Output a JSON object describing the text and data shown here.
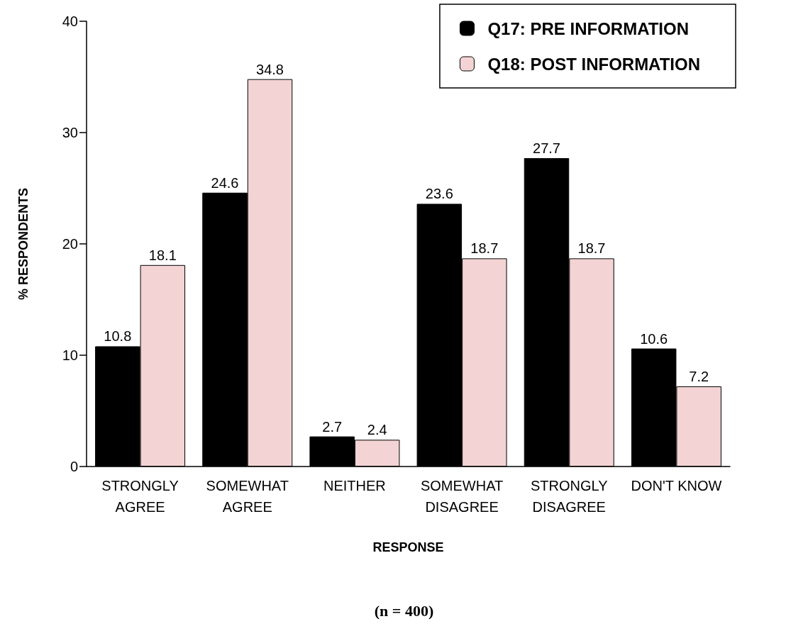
{
  "chart_data": {
    "type": "bar",
    "xlabel": "RESPONSE",
    "ylabel": "% RESPONDENTS",
    "categories": [
      "STRONGLY\nAGREE",
      "SOMEWHAT\nAGREE",
      "NEITHER",
      "SOMEWHAT\nDISAGREE",
      "STRONGLY\nDISAGREE",
      "DON'T KNOW"
    ],
    "series": [
      {
        "name": "Q17: PRE INFORMATION",
        "color": "#000000",
        "values": [
          10.8,
          24.6,
          2.7,
          23.6,
          27.7,
          10.6
        ]
      },
      {
        "name": "Q18: POST INFORMATION",
        "color": "#f3d3d3",
        "values": [
          18.1,
          34.8,
          2.4,
          18.7,
          18.7,
          7.2
        ]
      }
    ],
    "ylim": [
      0,
      40
    ],
    "yticks": [
      0,
      10,
      20,
      30,
      40
    ],
    "grid": false,
    "legend": "top right",
    "data_labels": true,
    "annotations": [
      "(n = 400)"
    ]
  }
}
